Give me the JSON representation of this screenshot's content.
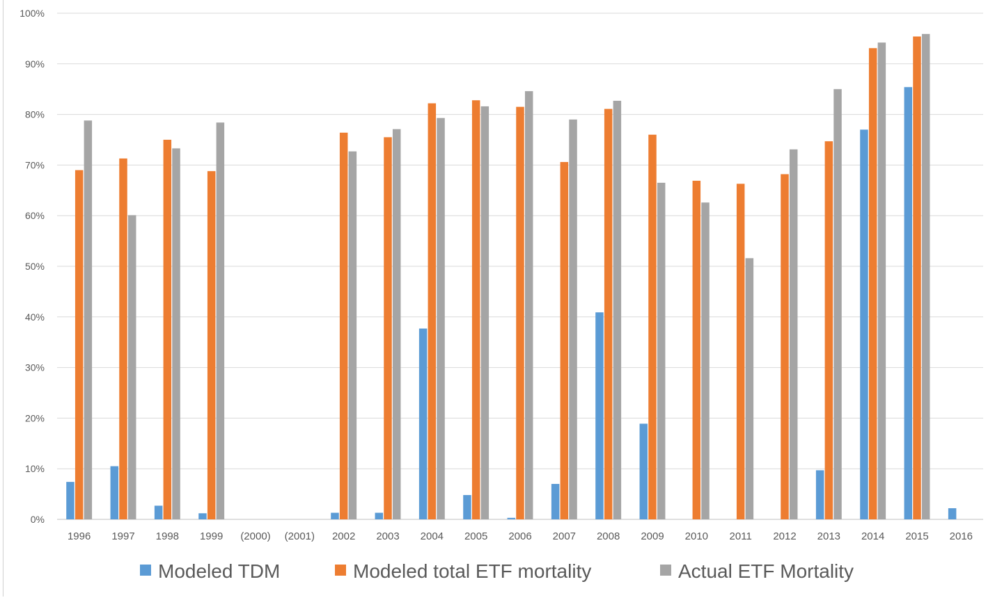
{
  "chart_data": {
    "type": "bar",
    "categories": [
      "1996",
      "1997",
      "1998",
      "1999",
      "(2000)",
      "(2001)",
      "2002",
      "2003",
      "2004",
      "2005",
      "2006",
      "2007",
      "2008",
      "2009",
      "2010",
      "2011",
      "2012",
      "2013",
      "2014",
      "2015",
      "2016"
    ],
    "series": [
      {
        "name": "Modeled TDM",
        "color": "#5B9BD5",
        "values": [
          7.4,
          10.5,
          2.7,
          1.2,
          null,
          null,
          1.3,
          1.3,
          37.7,
          4.8,
          0.3,
          7.0,
          40.9,
          18.9,
          null,
          null,
          null,
          9.7,
          77.0,
          85.4,
          2.2
        ]
      },
      {
        "name": "Modeled total ETF mortality",
        "color": "#ED7D31",
        "values": [
          69.0,
          71.3,
          75.0,
          68.8,
          null,
          null,
          76.4,
          75.5,
          82.2,
          82.8,
          81.5,
          70.6,
          81.1,
          76.0,
          66.9,
          66.3,
          68.2,
          74.7,
          93.1,
          95.4,
          null
        ]
      },
      {
        "name": "Actual ETF Mortality",
        "color": "#A5A5A5",
        "values": [
          78.8,
          60.1,
          73.3,
          78.4,
          null,
          null,
          72.7,
          77.1,
          79.3,
          81.6,
          84.6,
          79.0,
          82.7,
          66.5,
          62.6,
          51.6,
          73.1,
          85.0,
          94.2,
          95.9,
          null
        ]
      }
    ],
    "title": "",
    "xlabel": "",
    "ylabel": "",
    "ylim": [
      0,
      100
    ],
    "yticks": [
      "0%",
      "10%",
      "20%",
      "30%",
      "40%",
      "50%",
      "60%",
      "70%",
      "80%",
      "90%",
      "100%"
    ],
    "grid": true,
    "legend_position": "bottom"
  }
}
